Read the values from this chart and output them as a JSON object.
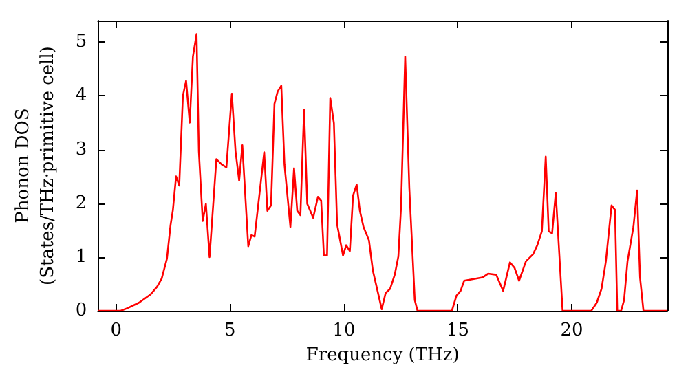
{
  "chart_data": {
    "type": "line",
    "xlabel": "Frequency (THz)",
    "ylabel": "Phonon DOS\n(States/THz·primitive cell)",
    "xlim": [
      -0.8,
      24.2
    ],
    "ylim": [
      0,
      5.4
    ],
    "xticks": [
      0,
      5,
      10,
      15,
      20
    ],
    "yticks": [
      0,
      1,
      2,
      3,
      4,
      5
    ],
    "grid": false,
    "marker": "none",
    "line_style": "solid",
    "series": [
      {
        "color": "#ff0000",
        "x": [
          -0.8,
          0.2,
          0.5,
          1,
          1.5,
          1.8,
          2.0,
          2.23,
          2.39,
          2.49,
          2.63,
          2.77,
          2.93,
          3.07,
          3.23,
          3.37,
          3.53,
          3.63,
          3.8,
          3.94,
          4.1,
          4.4,
          4.64,
          4.84,
          5.08,
          5.24,
          5.4,
          5.54,
          5.8,
          5.94,
          6.08,
          6.5,
          6.64,
          6.8,
          6.95,
          7.09,
          7.25,
          7.39,
          7.65,
          7.81,
          7.95,
          8.09,
          8.25,
          8.39,
          8.65,
          8.86,
          9.0,
          9.12,
          9.26,
          9.4,
          9.56,
          9.7,
          9.96,
          10.1,
          10.26,
          10.4,
          10.56,
          10.7,
          10.86,
          11.1,
          11.27,
          11.66,
          11.83,
          12.03,
          12.23,
          12.39,
          12.51,
          12.69,
          12.87,
          13.11,
          13.23,
          14.74,
          14.94,
          15.12,
          15.28,
          16.08,
          16.33,
          16.69,
          16.99,
          17.29,
          17.49,
          17.69,
          17.99,
          18.3,
          18.49,
          18.69,
          18.86,
          18.99,
          19.14,
          19.3,
          19.6,
          20.86,
          21.1,
          21.31,
          21.5,
          21.75,
          21.9,
          22.0,
          22.17,
          22.3,
          22.45,
          22.71,
          22.87,
          23.0,
          23.15,
          24.2
        ],
        "values": [
          0,
          0,
          0.05,
          0.15,
          0.3,
          0.45,
          0.6,
          0.97,
          1.6,
          1.87,
          2.5,
          2.33,
          4.0,
          4.28,
          3.5,
          4.73,
          5.15,
          2.97,
          1.67,
          1.99,
          1.0,
          2.82,
          2.72,
          2.67,
          4.04,
          2.97,
          2.42,
          3.08,
          1.2,
          1.41,
          1.38,
          2.95,
          1.86,
          1.96,
          3.85,
          4.08,
          4.19,
          2.72,
          1.56,
          2.65,
          1.86,
          1.78,
          3.74,
          1.99,
          1.73,
          2.12,
          2.05,
          1.03,
          1.03,
          3.96,
          3.49,
          1.61,
          1.03,
          1.22,
          1.11,
          2.14,
          2.35,
          1.86,
          1.56,
          1.31,
          0.75,
          0.03,
          0.33,
          0.41,
          0.67,
          1.01,
          1.95,
          4.73,
          2.29,
          0.2,
          0,
          0,
          0.28,
          0.37,
          0.56,
          0.62,
          0.69,
          0.67,
          0.37,
          0.9,
          0.8,
          0.56,
          0.92,
          1.05,
          1.22,
          1.48,
          2.87,
          1.48,
          1.44,
          2.19,
          0,
          0,
          0.15,
          0.41,
          0.92,
          1.96,
          1.88,
          0,
          0,
          0.2,
          0.92,
          1.56,
          2.24,
          0.62,
          0,
          0
        ]
      }
    ]
  }
}
